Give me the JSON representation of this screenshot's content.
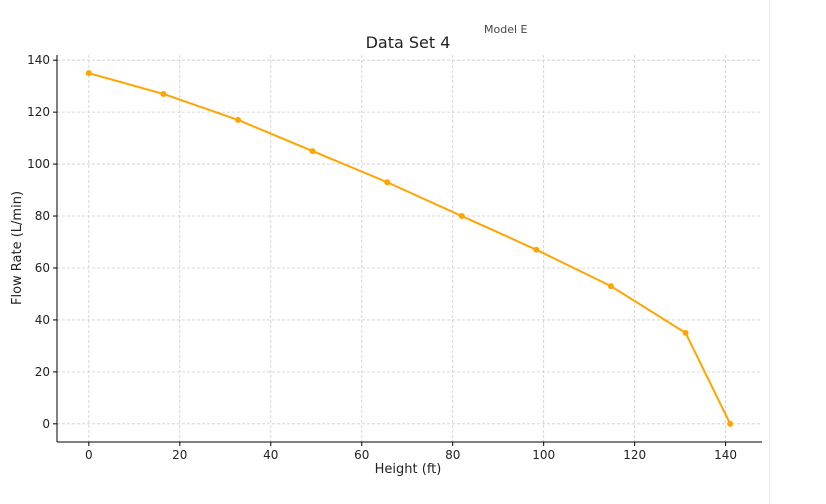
{
  "chart_data": {
    "type": "line",
    "title": "Data Set 4",
    "annotation": "Model E",
    "xlabel": "Height (ft)",
    "ylabel": "Flow Rate (L/min)",
    "xlim": [
      -7,
      148
    ],
    "ylim": [
      -7,
      142
    ],
    "xticks": [
      0,
      20,
      40,
      60,
      80,
      100,
      120,
      140
    ],
    "yticks": [
      0,
      20,
      40,
      60,
      80,
      100,
      120,
      140
    ],
    "grid": true,
    "series": [
      {
        "color": "#FFA500",
        "x": [
          0,
          16.4,
          32.8,
          49.2,
          65.6,
          82,
          98.4,
          114.8,
          131.2,
          141
        ],
        "y": [
          135,
          127,
          117,
          105,
          93,
          80,
          67,
          53,
          35,
          0
        ]
      }
    ]
  }
}
